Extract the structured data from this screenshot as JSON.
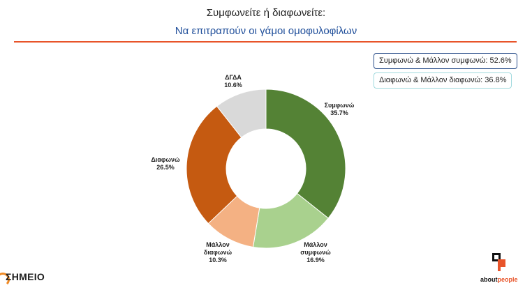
{
  "title": "Συμφωνείτε ή διαφωνείτε:",
  "subtitle": "Να επιτραπούν οι γάμοι ομοφυλοφίλων",
  "summary": {
    "agree": "Συμφωνώ & Μάλλον συμφωνώ: 52.6%",
    "disagree": "Διαφωνώ & Μάλλον διαφωνώ: 36.8%"
  },
  "logos": {
    "left": "ΣΗΜΕΙΟ",
    "right_a": "about",
    "right_b": "people"
  },
  "colors": {
    "title": "#1f4e9a",
    "rule": "#e8542a"
  },
  "chart_data": {
    "type": "pie",
    "donut": true,
    "slices": [
      {
        "name": "Συμφωνώ",
        "value": 35.7,
        "label": "35.7%",
        "color": "#548235"
      },
      {
        "name": "Μάλλον συμφωνώ",
        "value": 16.9,
        "label": "16.9%",
        "color": "#a9d18e"
      },
      {
        "name": "Μάλλον διαφωνώ",
        "value": 10.3,
        "label": "10.3%",
        "color": "#f4b183"
      },
      {
        "name": "Διαφωνώ",
        "value": 26.5,
        "label": "26.5%",
        "color": "#c55a11"
      },
      {
        "name": "ΔΓΔΑ",
        "value": 10.6,
        "label": "10.6%",
        "color": "#d9d9d9"
      }
    ]
  }
}
